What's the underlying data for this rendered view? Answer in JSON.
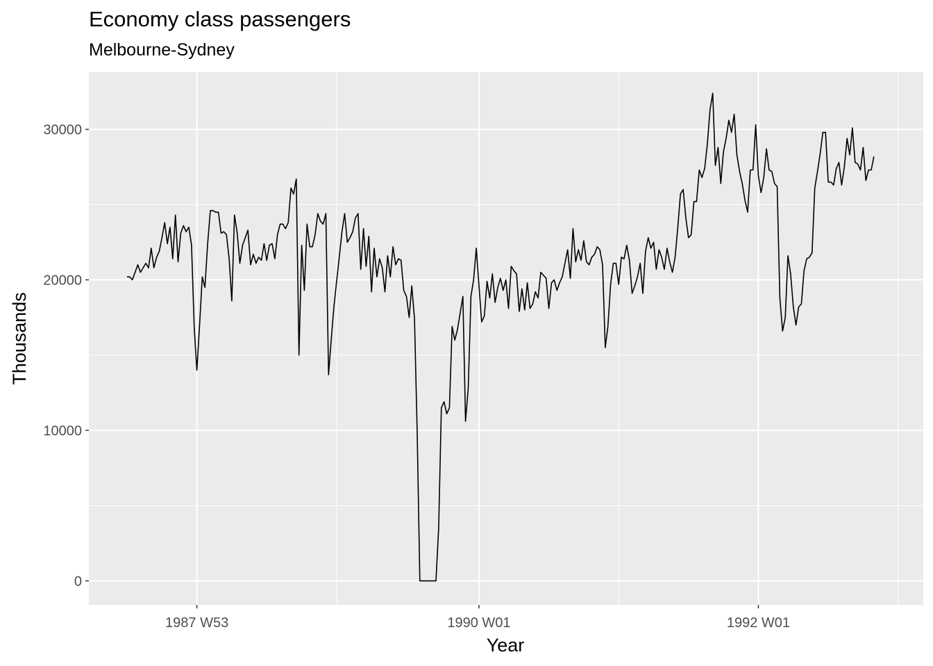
{
  "chart_data": {
    "type": "line",
    "title": "Economy class passengers",
    "subtitle": "Melbourne-Sydney",
    "xlabel": "Year",
    "ylabel": "Thousands",
    "x_ticks": [
      "1987 W53",
      "1990 W01",
      "1992 W01"
    ],
    "y_ticks": [
      0,
      10000,
      20000,
      30000
    ],
    "ylim": [
      -1600,
      33800
    ],
    "grid": true,
    "background_color": "#ebebeb",
    "grid_color": "#ffffff",
    "line_color": "#000000",
    "series": [
      {
        "x_start": "1987 W27",
        "x_step": "1 week",
        "values": [
          20200,
          20200,
          20000,
          20500,
          21000,
          20500,
          20800,
          21100,
          20800,
          22100,
          20800,
          21500,
          21900,
          22800,
          23800,
          22400,
          23500,
          21400,
          24300,
          21200,
          23100,
          23600,
          23200,
          23500,
          22300,
          16800,
          14000,
          17000,
          20200,
          19500,
          22400,
          24600,
          24600,
          24500,
          24500,
          23100,
          23200,
          23000,
          21400,
          18600,
          24300,
          23100,
          21100,
          22300,
          22800,
          23300,
          21000,
          21700,
          21100,
          21500,
          21300,
          22400,
          21300,
          22300,
          22400,
          21400,
          23000,
          23700,
          23700,
          23400,
          23800,
          26100,
          25700,
          26700,
          15000,
          22300,
          19300,
          23700,
          22200,
          22200,
          23000,
          24400,
          23900,
          23700,
          24400,
          13700,
          16000,
          18200,
          19900,
          21500,
          23200,
          24400,
          22500,
          22800,
          23200,
          24100,
          24400,
          20700,
          23400,
          20900,
          22900,
          19200,
          22100,
          20200,
          21400,
          20800,
          19200,
          21600,
          20200,
          22200,
          21000,
          21400,
          21300,
          19300,
          18900,
          17500,
          19600,
          17400,
          9800,
          0,
          0,
          0,
          0,
          0,
          0,
          0,
          3500,
          11500,
          11900,
          11100,
          11500,
          16900,
          16000,
          16700,
          17800,
          18900,
          10600,
          12800,
          18900,
          20000,
          22100,
          19600,
          17200,
          17600,
          19900,
          18800,
          20400,
          18500,
          19500,
          20100,
          19300,
          20000,
          18100,
          20900,
          20600,
          20400,
          17900,
          19400,
          18000,
          19800,
          18100,
          18400,
          19200,
          18800,
          20500,
          20300,
          20100,
          18100,
          19800,
          20000,
          19300,
          19800,
          20200,
          21100,
          22000,
          20100,
          23400,
          21200,
          22000,
          21300,
          22600,
          21200,
          21000,
          21500,
          21700,
          22200,
          22000,
          21000,
          15500,
          16900,
          19700,
          21100,
          21100,
          19700,
          21500,
          21400,
          22300,
          21300,
          19100,
          19600,
          20200,
          21100,
          19100,
          21900,
          22800,
          22100,
          22500,
          20700,
          22000,
          21500,
          20700,
          22100,
          21200,
          20500,
          21500,
          23500,
          25700,
          26000,
          24100,
          22800,
          23000,
          25200,
          25200,
          27300,
          26800,
          27400,
          29000,
          31300,
          32400,
          27600,
          28800,
          26400,
          28500,
          29400,
          30600,
          29800,
          31000,
          28300,
          27200,
          26400,
          25300,
          24500,
          27300,
          27300,
          30300,
          26900,
          25800,
          26800,
          28700,
          27300,
          27200,
          26400,
          26200,
          18800,
          16600,
          17500,
          21600,
          20400,
          18200,
          17000,
          18200,
          18400,
          20600,
          21400,
          21500,
          21800,
          26100,
          27200,
          28400,
          29800,
          29800,
          26500,
          26500,
          26300,
          27400,
          27800,
          26300,
          27500,
          29400,
          28300,
          30100,
          27800,
          27700,
          27300,
          28800,
          26600,
          27300,
          27300,
          28200
        ]
      }
    ]
  }
}
